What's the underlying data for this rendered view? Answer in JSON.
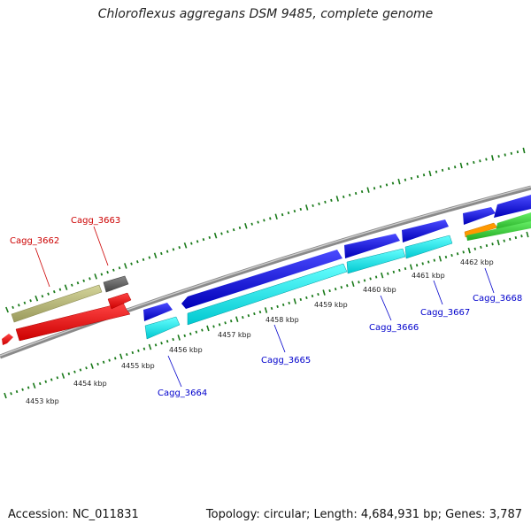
{
  "title": "Chloroflexus aggregans DSM 9485, complete genome",
  "footer": {
    "accession": "Accession: NC_011831",
    "topology": "Topology: circular; Length: 4,684,931 bp; Genes: 3,787"
  },
  "colors": {
    "backbone": "#8a8a8a",
    "tick": "#1a7a1a",
    "label_red": "#cc0000",
    "label_blue": "#0000cc"
  },
  "kbp_labels": [
    "4453 kbp",
    "4454 kbp",
    "4455 kbp",
    "4456 kbp",
    "4457 kbp",
    "4458 kbp",
    "4459 kbp",
    "4460 kbp",
    "4461 kbp",
    "4462 kbp"
  ],
  "gene_labels": [
    {
      "text": "Cagg_3662",
      "color": "red"
    },
    {
      "text": "Cagg_3663",
      "color": "red"
    },
    {
      "text": "Cagg_3664",
      "color": "blue"
    },
    {
      "text": "Cagg_3665",
      "color": "blue"
    },
    {
      "text": "Cagg_3666",
      "color": "blue"
    },
    {
      "text": "Cagg_3667",
      "color": "blue"
    },
    {
      "text": "Cagg_3668",
      "color": "blue"
    }
  ],
  "features": [
    {
      "kind": "olive",
      "color": "#b8b878"
    },
    {
      "kind": "grey",
      "color": "#666666"
    },
    {
      "kind": "red",
      "color": "#ee1111"
    },
    {
      "kind": "blue",
      "color": "#1111dd"
    },
    {
      "kind": "cyan",
      "color": "#00e0e8"
    },
    {
      "kind": "orange",
      "color": "#ff9900"
    },
    {
      "kind": "green",
      "color": "#33cc33"
    }
  ]
}
